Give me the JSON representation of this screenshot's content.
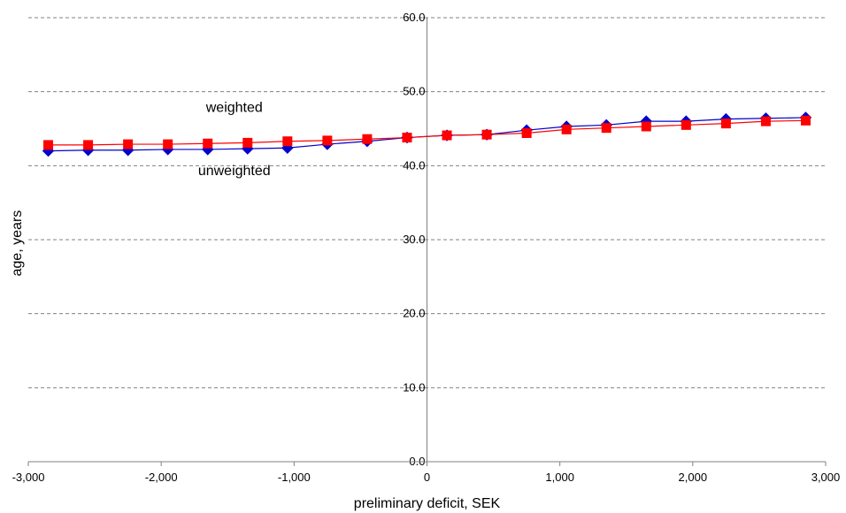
{
  "chart_data": {
    "type": "line",
    "title": "",
    "xlabel": "preliminary deficit, SEK",
    "ylabel": "age, years",
    "xlim": [
      -3000,
      3000
    ],
    "ylim": [
      0,
      60
    ],
    "x_ticks": [
      -3000,
      -2000,
      -1000,
      0,
      1000,
      2000,
      3000
    ],
    "x_tick_labels": [
      "-3,000",
      "-2,000",
      "-1,000",
      "0",
      "1,000",
      "2,000",
      "3,000"
    ],
    "y_ticks": [
      0,
      10,
      20,
      30,
      40,
      50,
      60
    ],
    "y_tick_labels": [
      "0.0",
      "10.0",
      "20.0",
      "30.0",
      "40.0",
      "50.0",
      "60.0"
    ],
    "grid": "horizontal dashed",
    "x": [
      -2850,
      -2550,
      -2250,
      -1950,
      -1650,
      -1350,
      -1050,
      -750,
      -450,
      -150,
      150,
      450,
      750,
      1050,
      1350,
      1650,
      1950,
      2250,
      2550,
      2850
    ],
    "series": [
      {
        "color": "#0000cc",
        "marker": "diamond",
        "values": [
          42.0,
          42.1,
          42.1,
          42.2,
          42.2,
          42.3,
          42.4,
          42.9,
          43.3,
          43.8,
          44.1,
          44.2,
          44.8,
          45.3,
          45.5,
          46.0,
          46.0,
          46.3,
          46.4,
          46.5
        ]
      },
      {
        "color": "#ff0000",
        "marker": "square",
        "values": [
          42.8,
          42.8,
          42.9,
          42.9,
          43.0,
          43.1,
          43.3,
          43.4,
          43.6,
          43.8,
          44.1,
          44.2,
          44.4,
          44.9,
          45.1,
          45.3,
          45.5,
          45.7,
          46.0,
          46.1
        ]
      }
    ],
    "annotations": [
      {
        "text": "weighted",
        "x": -1450,
        "y": 47.3
      },
      {
        "text": "unweighted",
        "x": -1450,
        "y": 38.7
      }
    ]
  }
}
